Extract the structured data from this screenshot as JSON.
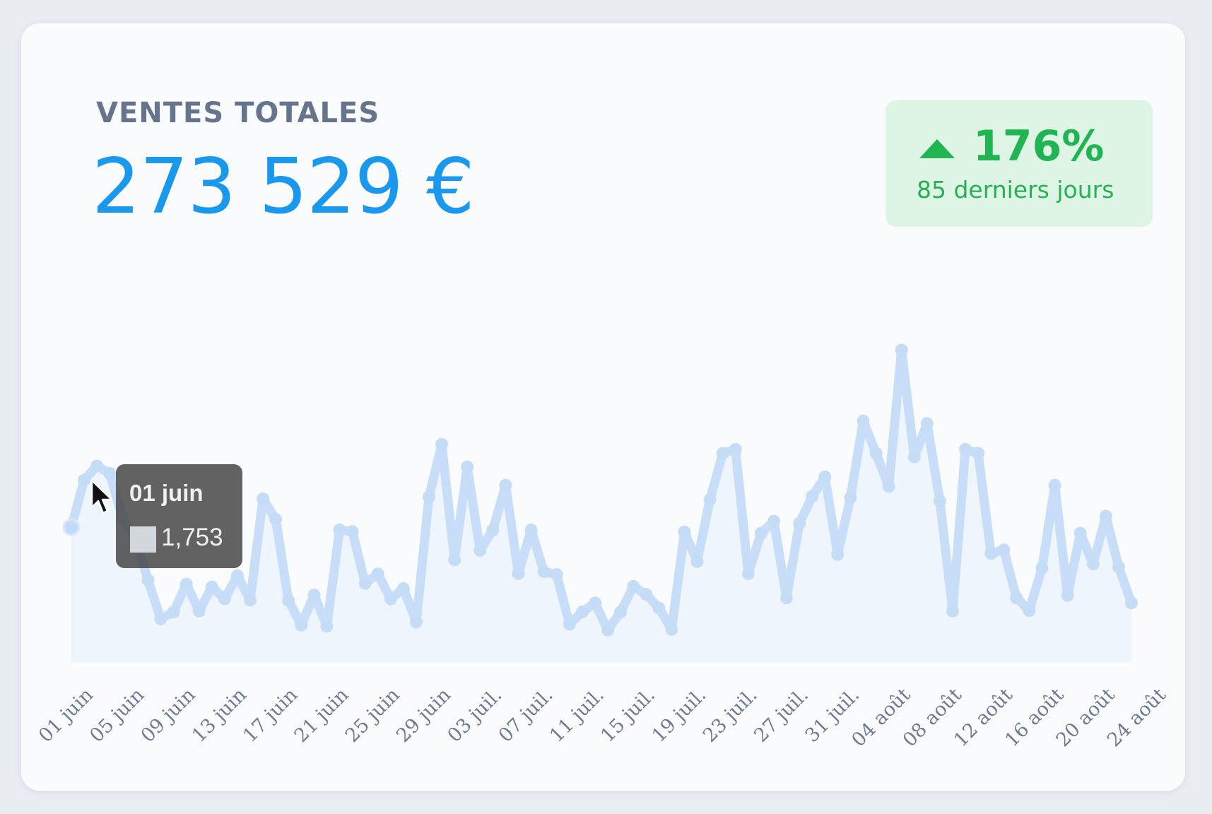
{
  "card": {
    "title": "VENTES TOTALES",
    "total": "273 529 €"
  },
  "badge": {
    "icon": "triangle-up-icon",
    "percent": "176%",
    "period": "85 derniers jours",
    "color": "#22b452",
    "background": "#def5e5"
  },
  "tooltip": {
    "date": "01 juin",
    "value": "1,753"
  },
  "colors": {
    "line": "#c7ddf8",
    "area": "#eef5fd",
    "total": "#1a98ee"
  },
  "chart_data": {
    "type": "line",
    "title": "",
    "xlabel": "",
    "ylabel": "",
    "grid": false,
    "legend": "none",
    "y_axis_visible": false,
    "ylim": [
      0,
      4400
    ],
    "x_ticks": [
      "01 juin",
      "05 juin",
      "09 juin",
      "13 juin",
      "17 juin",
      "21 juin",
      "25 juin",
      "29 juin",
      "03 juil.",
      "07 juil.",
      "11 juil.",
      "15 juil.",
      "19 juil.",
      "23 juil.",
      "27 juil.",
      "31 juil.",
      "04 août",
      "08 août",
      "12 août",
      "16 août",
      "20 août",
      "24 août"
    ],
    "series": [
      {
        "values": [
          1753,
          2367,
          2548,
          2454,
          1878,
          1628,
          1067,
          562,
          651,
          1014,
          663,
          976,
          822,
          1122,
          805,
          2122,
          1856,
          800,
          480,
          873,
          467,
          1718,
          1697,
          1023,
          1146,
          820,
          957,
          522,
          2148,
          2832,
          1329,
          2538,
          1452,
          1718,
          2299,
          1150,
          1718,
          1176,
          1138,
          492,
          651,
          769,
          417,
          651,
          984,
          880,
          705,
          424,
          1693,
          1307,
          2112,
          2714,
          2766,
          1149,
          1675,
          1832,
          834,
          1801,
          2155,
          2407,
          1398,
          2135,
          3134,
          2714,
          2283,
          4057,
          2666,
          3102,
          2094,
          663,
          2766,
          2714,
          1411,
          1460,
          836,
          670,
          1224,
          2299,
          866,
          1676,
          1276,
          1896,
          1237,
          770
        ]
      }
    ]
  }
}
